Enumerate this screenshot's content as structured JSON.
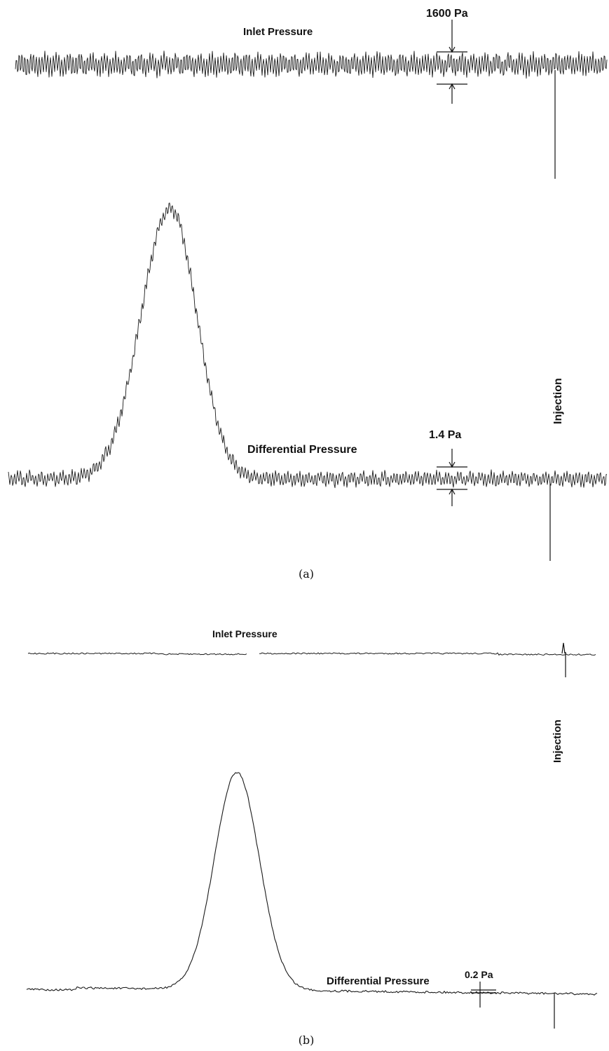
{
  "chart_data": [
    {
      "type": "line",
      "caption": "(a)",
      "series": [
        {
          "name": "Inlet Pressure",
          "pulsation_amplitude": "1600 Pa",
          "baseline": 0,
          "peak": null
        },
        {
          "name": "Differential Pressure",
          "pulsation_amplitude": "1.4 Pa",
          "baseline": 0,
          "peak": {
            "height": 1.0,
            "position": 0.28
          }
        }
      ],
      "annotations": [
        "1600 Pa",
        "1.4 Pa",
        "Injection"
      ]
    },
    {
      "type": "line",
      "caption": "(b)",
      "series": [
        {
          "name": "Inlet Pressure",
          "pulsation_amplitude": null,
          "baseline": 0,
          "peak": null
        },
        {
          "name": "Differential Pressure",
          "pulsation_amplitude": "0.2 Pa",
          "baseline": 0,
          "peak": {
            "height": 1.0,
            "position": 0.38
          }
        }
      ],
      "annotations": [
        "0.2 Pa",
        "Injection"
      ]
    }
  ],
  "colors": {
    "trace": "#1a1a1a",
    "background": "#ffffff"
  }
}
